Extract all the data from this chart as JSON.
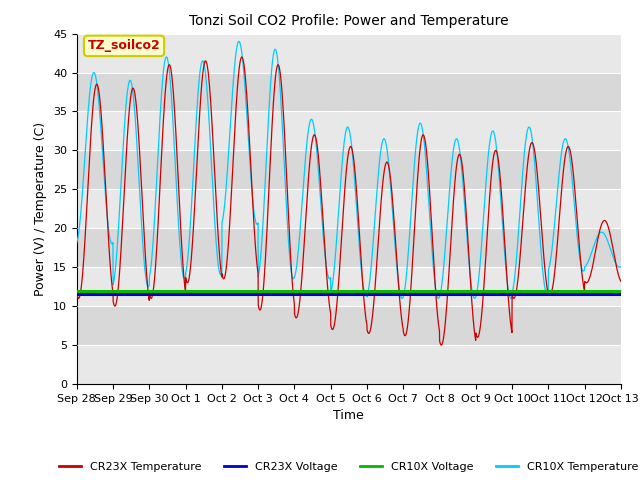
{
  "title": "Tonzi Soil CO2 Profile: Power and Temperature",
  "xlabel": "Time",
  "ylabel": "Power (V) / Temperature (C)",
  "ylim": [
    0,
    45
  ],
  "yticks": [
    0,
    5,
    10,
    15,
    20,
    25,
    30,
    35,
    40,
    45
  ],
  "annotation_label": "TZ_soilco2",
  "annotation_color": "#cc0000",
  "annotation_bg": "#ffffcc",
  "annotation_edge": "#cccc00",
  "cr23x_voltage_value": 11.5,
  "cr10x_voltage_value": 12.0,
  "colors": {
    "cr23x_temp": "#cc0000",
    "cr23x_voltage": "#0000cc",
    "cr10x_voltage": "#00bb00",
    "cr10x_temp": "#00ccff"
  },
  "plot_bg_light": "#f0f0f0",
  "plot_bg_dark": "#d8d8d8",
  "x_tick_labels": [
    "Sep 28",
    "Sep 29",
    "Sep 30",
    "Oct 1",
    "Oct 2",
    "Oct 3",
    "Oct 4",
    "Oct 5",
    "Oct 6",
    "Oct 7",
    "Oct 8",
    "Oct 9",
    "Oct 10",
    "Oct 11",
    "Oct 12",
    "Oct 13"
  ],
  "x_tick_positions": [
    0,
    1,
    2,
    3,
    4,
    5,
    6,
    7,
    8,
    9,
    10,
    11,
    12,
    13,
    14,
    15
  ],
  "peaks_cr23x": [
    38.5,
    38.0,
    41.0,
    41.5,
    42.0,
    41.0,
    32.0,
    30.5,
    28.5,
    32.0,
    29.5,
    30.0,
    31.0,
    30.5,
    21.0
  ],
  "troughs_cr23x": [
    11.0,
    10.0,
    11.0,
    13.0,
    13.5,
    9.5,
    8.5,
    7.0,
    6.5,
    6.2,
    5.0,
    6.0,
    11.0,
    11.5,
    13.0
  ],
  "peaks_cr10x": [
    40.0,
    39.0,
    42.0,
    41.5,
    44.0,
    43.0,
    34.0,
    33.0,
    31.5,
    33.5,
    31.5,
    32.5,
    33.0,
    31.5,
    19.5
  ],
  "troughs_cr10x": [
    18.0,
    12.5,
    13.5,
    14.0,
    20.5,
    13.5,
    13.5,
    11.5,
    11.0,
    11.0,
    11.0,
    11.0,
    11.5,
    14.5,
    15.0
  ],
  "phase_cr23x": 0.3,
  "phase_cr10x": 0.22
}
